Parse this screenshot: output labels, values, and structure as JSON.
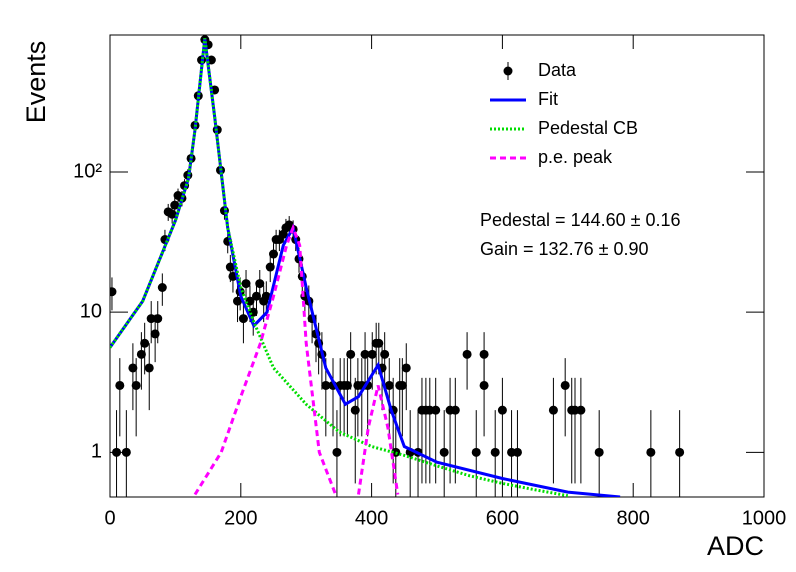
{
  "chart_data": {
    "type": "fit",
    "x_label": "ADC",
    "y_label": "Events",
    "xlim": [
      0,
      1000
    ],
    "xticks": [
      0,
      200,
      400,
      600,
      800,
      1000
    ],
    "ylim": [
      0.48,
      950
    ],
    "yticks": [
      1,
      10,
      {
        "value": 100,
        "label": "10²"
      }
    ],
    "log_y": true,
    "legend": "upper right",
    "annotations": [
      "Pedestal = 144.60 ± 0.16",
      "Gain = 132.76 ± 0.90"
    ],
    "series": [
      {
        "name": "Data",
        "type": "errorbar",
        "color": "#000000",
        "x": [
          3,
          10,
          15,
          25,
          35,
          40,
          48,
          53,
          60,
          63,
          69,
          73,
          80,
          84,
          89,
          95,
          99,
          104,
          110,
          114,
          119,
          124,
          130,
          135,
          140,
          145,
          150,
          155,
          160,
          164,
          169,
          175,
          180,
          184,
          188,
          195,
          199,
          204,
          208,
          214,
          219,
          224,
          229,
          235,
          239,
          245,
          250,
          254,
          259,
          265,
          269,
          274,
          280,
          284,
          289,
          294,
          298,
          304,
          309,
          315,
          319,
          324,
          330,
          341,
          347,
          352,
          358,
          363,
          368,
          375,
          379,
          385,
          390,
          394,
          401,
          407,
          411,
          416,
          420,
          427,
          433,
          437,
          443,
          447,
          453,
          459,
          471,
          477,
          483,
          489,
          498,
          511,
          520,
          528,
          546,
          560,
          572,
          572,
          589,
          600,
          614,
          623,
          678,
          696,
          706,
          711,
          720,
          748,
          827,
          871
        ],
        "values": [
          14,
          1,
          3,
          1,
          4,
          3,
          5,
          6,
          4,
          9,
          7,
          9,
          15,
          33,
          52,
          50,
          58,
          68,
          65,
          80,
          95,
          125,
          215,
          350,
          630,
          880,
          810,
          630,
          385,
          200,
          103,
          53,
          32,
          21,
          18,
          12,
          14,
          9,
          16,
          12,
          10,
          13,
          16,
          12,
          13,
          21,
          26,
          33,
          33,
          36,
          40,
          42,
          39,
          33,
          24,
          18,
          13,
          12,
          9,
          7,
          6,
          5,
          3,
          3,
          1,
          3,
          3,
          3,
          5,
          2,
          3,
          3,
          5,
          3,
          5,
          6,
          6,
          4,
          5,
          3,
          2,
          1,
          3,
          3,
          4,
          1,
          1,
          2,
          2,
          2,
          2,
          1,
          2,
          2,
          5,
          1,
          3,
          5,
          1,
          2,
          1,
          1,
          2,
          3,
          2,
          2,
          2,
          1,
          1,
          1
        ],
        "errors": [
          3.7,
          1,
          1.7,
          1,
          2,
          1.7,
          2.2,
          2.4,
          2,
          3,
          2.6,
          3,
          3.9,
          5.7,
          7.2,
          7.1,
          7.6,
          8.2,
          8.1,
          8.9,
          9.7,
          11.2,
          14.7,
          18.7,
          25.1,
          29.7,
          28.5,
          25.1,
          19.6,
          14.1,
          10.1,
          7.3,
          5.7,
          4.6,
          4.2,
          3.5,
          3.7,
          3,
          4,
          3.5,
          3.2,
          3.6,
          4,
          3.5,
          3.6,
          4.6,
          5.1,
          5.7,
          5.7,
          6,
          6.3,
          6.5,
          6.2,
          5.7,
          4.9,
          4.2,
          3.6,
          3.5,
          3,
          2.6,
          2.4,
          2.2,
          1.7,
          1.7,
          1,
          1.7,
          1.7,
          1.7,
          2.2,
          1.4,
          1.7,
          1.7,
          2.2,
          1.7,
          2.2,
          2.4,
          2.4,
          2,
          2.2,
          1.7,
          1.4,
          1,
          1.7,
          1.7,
          2,
          1,
          1,
          1.4,
          1.4,
          1.4,
          1.4,
          1,
          1.4,
          1.4,
          2.2,
          1,
          1.7,
          2.2,
          1,
          1.4,
          1,
          1,
          1.4,
          1.7,
          1.4,
          1.4,
          1.4,
          1,
          1,
          1
        ]
      },
      {
        "name": "Fit",
        "type": "line",
        "line_style": "solid",
        "color": "#0000ff",
        "x": [
          0,
          50,
          100,
          120,
          130,
          145,
          160,
          180,
          200,
          220,
          240,
          265,
          280,
          300,
          330,
          360,
          380,
          410,
          430,
          450,
          500,
          600,
          700,
          780
        ],
        "values": [
          5.6,
          12,
          45,
          90,
          200,
          900,
          250,
          40,
          13,
          8,
          10,
          30,
          40,
          15,
          4,
          2.2,
          2.5,
          4.2,
          2,
          1.1,
          0.85,
          0.65,
          0.52,
          0.48
        ]
      },
      {
        "name": "Pedestal CB",
        "type": "line",
        "line_style": "dotted",
        "color": "#00dd00",
        "x": [
          0,
          50,
          100,
          120,
          130,
          145,
          160,
          180,
          200,
          220,
          250,
          280,
          300,
          350,
          400,
          450,
          500,
          550,
          600,
          650,
          700
        ],
        "values": [
          5.6,
          12,
          45,
          90,
          200,
          900,
          250,
          40,
          15,
          8.5,
          4,
          2.8,
          2.2,
          1.4,
          1.1,
          0.95,
          0.8,
          0.68,
          0.6,
          0.54,
          0.49
        ]
      },
      {
        "name": "p.e. peak",
        "type": "line",
        "line_style": "dashed",
        "color": "#ff00ff",
        "x": [
          130,
          170,
          200,
          230,
          250,
          270,
          280,
          290,
          300,
          320,
          345,
          365,
          380,
          395,
          410,
          425,
          440
        ],
        "values": [
          0.5,
          1,
          2.5,
          6,
          13,
          30,
          40,
          30,
          6,
          1,
          0.5,
          null,
          0.5,
          1.5,
          3,
          1.5,
          0.5
        ]
      }
    ]
  }
}
